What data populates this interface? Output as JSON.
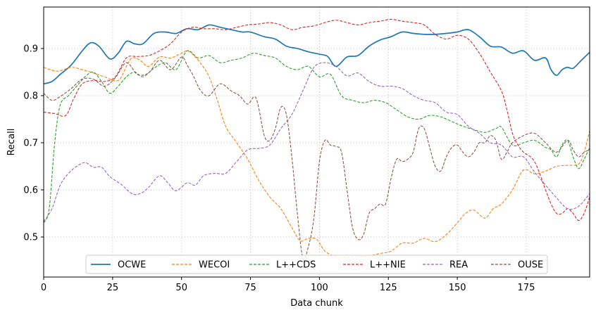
{
  "chart_data": {
    "type": "line",
    "xlabel": "Data chunk",
    "ylabel": "Recall",
    "xlim": [
      0,
      198
    ],
    "ylim": [
      0.415,
      0.988
    ],
    "xticks": [
      0,
      25,
      50,
      75,
      100,
      125,
      150,
      175
    ],
    "yticks": [
      0.5,
      0.6,
      0.7,
      0.8,
      0.9
    ],
    "grid": true,
    "legend_placement": "bottom-center",
    "colors": {
      "OCWE": "#1f77b4",
      "WECOI": "#ff7f0e",
      "L++CDS": "#2ca02c",
      "L++NIE": "#d62728",
      "REA": "#9467bd",
      "OUSE": "#8c564b"
    },
    "series": [
      {
        "name": "OCWE",
        "style": "solid",
        "x": [
          0,
          3,
          6,
          10,
          14,
          17,
          20,
          24,
          27,
          30,
          33,
          36,
          40,
          44,
          48,
          52,
          56,
          60,
          64,
          68,
          72,
          75,
          80,
          84,
          88,
          92,
          96,
          100,
          103,
          106,
          110,
          114,
          118,
          122,
          126,
          130,
          134,
          138,
          142,
          146,
          150,
          154,
          158,
          162,
          166,
          170,
          174,
          178,
          182,
          184,
          186,
          188,
          190,
          192,
          195,
          198
        ],
        "y": [
          0.825,
          0.83,
          0.845,
          0.865,
          0.895,
          0.912,
          0.905,
          0.878,
          0.89,
          0.915,
          0.91,
          0.91,
          0.932,
          0.935,
          0.932,
          0.942,
          0.94,
          0.95,
          0.945,
          0.94,
          0.935,
          0.935,
          0.925,
          0.92,
          0.905,
          0.9,
          0.893,
          0.888,
          0.883,
          0.862,
          0.882,
          0.885,
          0.905,
          0.918,
          0.925,
          0.935,
          0.932,
          0.93,
          0.93,
          0.932,
          0.935,
          0.94,
          0.925,
          0.905,
          0.903,
          0.89,
          0.895,
          0.875,
          0.88,
          0.855,
          0.843,
          0.855,
          0.86,
          0.858,
          0.875,
          0.892
        ]
      },
      {
        "name": "WECOI",
        "style": "dashed",
        "x": [
          0,
          5,
          10,
          14,
          18,
          22,
          27,
          30,
          32,
          35,
          38,
          42,
          46,
          50,
          52,
          54,
          57,
          60,
          63,
          66,
          70,
          74,
          78,
          82,
          86,
          90,
          93,
          96,
          99,
          102,
          106,
          110,
          114,
          118,
          122,
          126,
          130,
          134,
          138,
          142,
          146,
          150,
          153,
          156,
          160,
          163,
          166,
          170,
          174,
          178,
          182,
          186,
          190,
          194,
          196,
          198
        ],
        "y": [
          0.86,
          0.852,
          0.86,
          0.855,
          0.848,
          0.84,
          0.832,
          0.862,
          0.88,
          0.875,
          0.862,
          0.882,
          0.88,
          0.89,
          0.895,
          0.888,
          0.868,
          0.84,
          0.79,
          0.735,
          0.7,
          0.665,
          0.62,
          0.585,
          0.56,
          0.52,
          0.492,
          0.497,
          0.495,
          0.47,
          0.458,
          0.457,
          0.458,
          0.46,
          0.465,
          0.47,
          0.487,
          0.487,
          0.497,
          0.49,
          0.505,
          0.53,
          0.55,
          0.557,
          0.54,
          0.56,
          0.57,
          0.6,
          0.642,
          0.634,
          0.64,
          0.65,
          0.652,
          0.655,
          0.68,
          0.725
        ]
      },
      {
        "name": "L++CDS",
        "style": "dashed",
        "x": [
          0,
          2,
          4,
          6,
          9,
          12,
          15,
          18,
          21,
          24,
          27,
          30,
          33,
          36,
          40,
          44,
          48,
          52,
          56,
          60,
          64,
          68,
          72,
          76,
          80,
          84,
          88,
          92,
          96,
          100,
          104,
          108,
          112,
          116,
          120,
          124,
          128,
          132,
          136,
          140,
          144,
          148,
          152,
          156,
          160,
          164,
          166,
          170,
          174,
          178,
          182,
          184,
          186,
          188,
          190,
          192,
          194,
          196,
          198
        ],
        "y": [
          0.53,
          0.56,
          0.7,
          0.78,
          0.8,
          0.82,
          0.84,
          0.85,
          0.83,
          0.805,
          0.82,
          0.84,
          0.85,
          0.84,
          0.858,
          0.87,
          0.855,
          0.895,
          0.88,
          0.885,
          0.87,
          0.875,
          0.88,
          0.89,
          0.885,
          0.88,
          0.862,
          0.855,
          0.862,
          0.84,
          0.845,
          0.8,
          0.79,
          0.785,
          0.79,
          0.785,
          0.77,
          0.755,
          0.75,
          0.758,
          0.755,
          0.745,
          0.735,
          0.728,
          0.722,
          0.73,
          0.733,
          0.695,
          0.7,
          0.705,
          0.69,
          0.685,
          0.67,
          0.695,
          0.705,
          0.67,
          0.645,
          0.665,
          0.69
        ]
      },
      {
        "name": "L++NIE",
        "style": "dashed",
        "x": [
          0,
          4,
          8,
          11,
          14,
          18,
          22,
          26,
          30,
          34,
          38,
          42,
          46,
          50,
          54,
          58,
          62,
          66,
          70,
          74,
          78,
          82,
          86,
          90,
          94,
          98,
          102,
          106,
          110,
          114,
          118,
          122,
          126,
          130,
          134,
          138,
          142,
          146,
          150,
          154,
          158,
          162,
          166,
          168,
          170,
          172,
          174,
          178,
          182,
          184,
          186,
          188,
          190,
          192,
          194,
          196,
          198
        ],
        "y": [
          0.765,
          0.762,
          0.758,
          0.795,
          0.825,
          0.832,
          0.83,
          0.84,
          0.88,
          0.883,
          0.885,
          0.895,
          0.91,
          0.935,
          0.945,
          0.942,
          0.942,
          0.94,
          0.945,
          0.95,
          0.952,
          0.955,
          0.95,
          0.94,
          0.945,
          0.948,
          0.955,
          0.96,
          0.955,
          0.95,
          0.955,
          0.958,
          0.962,
          0.958,
          0.955,
          0.95,
          0.93,
          0.92,
          0.928,
          0.92,
          0.89,
          0.85,
          0.81,
          0.77,
          0.72,
          0.695,
          0.68,
          0.66,
          0.6,
          0.57,
          0.55,
          0.55,
          0.56,
          0.55,
          0.535,
          0.55,
          0.585
        ]
      },
      {
        "name": "REA",
        "style": "dashed",
        "x": [
          0,
          3,
          6,
          9,
          12,
          15,
          18,
          21,
          24,
          28,
          32,
          35,
          38,
          42,
          45,
          48,
          52,
          55,
          58,
          62,
          66,
          70,
          74,
          78,
          82,
          86,
          90,
          94,
          98,
          102,
          106,
          110,
          114,
          118,
          122,
          126,
          130,
          134,
          138,
          142,
          146,
          150,
          154,
          158,
          162,
          166,
          170,
          174,
          178,
          182,
          186,
          190,
          194,
          198
        ],
        "y": [
          0.533,
          0.56,
          0.61,
          0.635,
          0.65,
          0.658,
          0.648,
          0.648,
          0.628,
          0.612,
          0.592,
          0.592,
          0.605,
          0.63,
          0.615,
          0.598,
          0.615,
          0.61,
          0.63,
          0.635,
          0.635,
          0.66,
          0.685,
          0.688,
          0.695,
          0.73,
          0.76,
          0.81,
          0.86,
          0.87,
          0.862,
          0.842,
          0.848,
          0.83,
          0.82,
          0.82,
          0.815,
          0.8,
          0.79,
          0.785,
          0.765,
          0.76,
          0.735,
          0.72,
          0.7,
          0.695,
          0.67,
          0.67,
          0.638,
          0.61,
          0.583,
          0.56,
          0.565,
          0.592
        ]
      },
      {
        "name": "OUSE",
        "style": "dashed",
        "x": [
          0,
          3,
          6,
          10,
          14,
          18,
          22,
          26,
          30,
          34,
          38,
          42,
          46,
          50,
          52,
          54,
          57,
          60,
          64,
          68,
          71,
          74,
          77,
          80,
          82,
          84,
          86,
          88,
          90,
          92,
          94,
          96,
          98,
          100,
          102,
          104,
          106,
          108,
          110,
          112,
          114,
          116,
          118,
          120,
          122,
          124,
          126,
          128,
          130,
          132,
          134,
          136,
          138,
          140,
          142,
          144,
          146,
          148,
          150,
          152,
          154,
          156,
          158,
          160,
          162,
          164,
          166,
          168,
          170,
          174,
          178,
          182,
          186,
          190,
          192,
          194,
          196,
          198
        ],
        "y": [
          0.805,
          0.79,
          0.798,
          0.815,
          0.835,
          0.835,
          0.82,
          0.838,
          0.87,
          0.845,
          0.848,
          0.875,
          0.855,
          0.882,
          0.865,
          0.845,
          0.81,
          0.8,
          0.825,
          0.81,
          0.8,
          0.782,
          0.795,
          0.715,
          0.705,
          0.73,
          0.775,
          0.76,
          0.67,
          0.55,
          0.455,
          0.48,
          0.54,
          0.66,
          0.705,
          0.695,
          0.692,
          0.68,
          0.6,
          0.52,
          0.495,
          0.505,
          0.55,
          0.56,
          0.57,
          0.57,
          0.625,
          0.665,
          0.66,
          0.665,
          0.68,
          0.73,
          0.73,
          0.69,
          0.65,
          0.64,
          0.67,
          0.69,
          0.695,
          0.68,
          0.67,
          0.68,
          0.7,
          0.7,
          0.715,
          0.705,
          0.665,
          0.68,
          0.7,
          0.715,
          0.72,
          0.7,
          0.68,
          0.705,
          0.685,
          0.67,
          0.68,
          0.685
        ]
      }
    ]
  }
}
